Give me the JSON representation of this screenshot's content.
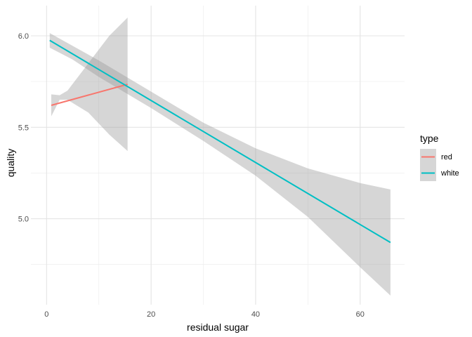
{
  "chart_data": {
    "type": "line",
    "title": "",
    "xlabel": "residual sugar",
    "ylabel": "quality",
    "xlim": [
      -3,
      68.5
    ],
    "ylim": [
      4.53,
      6.165
    ],
    "x_ticks": [
      0,
      20,
      40,
      60
    ],
    "x_tick_labels": [
      "0",
      "20",
      "40",
      "60"
    ],
    "y_ticks": [
      5.0,
      5.5,
      6.0
    ],
    "y_tick_labels": [
      "5.0",
      "5.5",
      "6.0"
    ],
    "grid": true,
    "legend": {
      "title": "type",
      "position": "right",
      "entries": [
        "red",
        "white"
      ]
    },
    "series": [
      {
        "name": "red",
        "color": "#F8766D",
        "x": [
          0.9,
          15.5
        ],
        "fit": [
          5.62,
          5.735
        ],
        "band": {
          "x": [
            0.9,
            2.5,
            4.0,
            8.0,
            12.0,
            15.5
          ],
          "lower": [
            5.56,
            5.65,
            5.65,
            5.58,
            5.46,
            5.37
          ],
          "upper": [
            5.68,
            5.675,
            5.7,
            5.85,
            6.0,
            6.1
          ]
        }
      },
      {
        "name": "white",
        "color": "#00BFC4",
        "x": [
          0.6,
          65.8
        ],
        "fit": [
          5.975,
          4.87
        ],
        "band": {
          "x": [
            0.6,
            5.0,
            10.0,
            20.0,
            30.0,
            40.0,
            50.0,
            60.0,
            65.8
          ],
          "lower": [
            5.935,
            5.87,
            5.775,
            5.605,
            5.425,
            5.235,
            5.01,
            4.735,
            4.58
          ],
          "upper": [
            6.015,
            5.945,
            5.865,
            5.695,
            5.525,
            5.385,
            5.275,
            5.195,
            5.16
          ]
        }
      }
    ]
  }
}
